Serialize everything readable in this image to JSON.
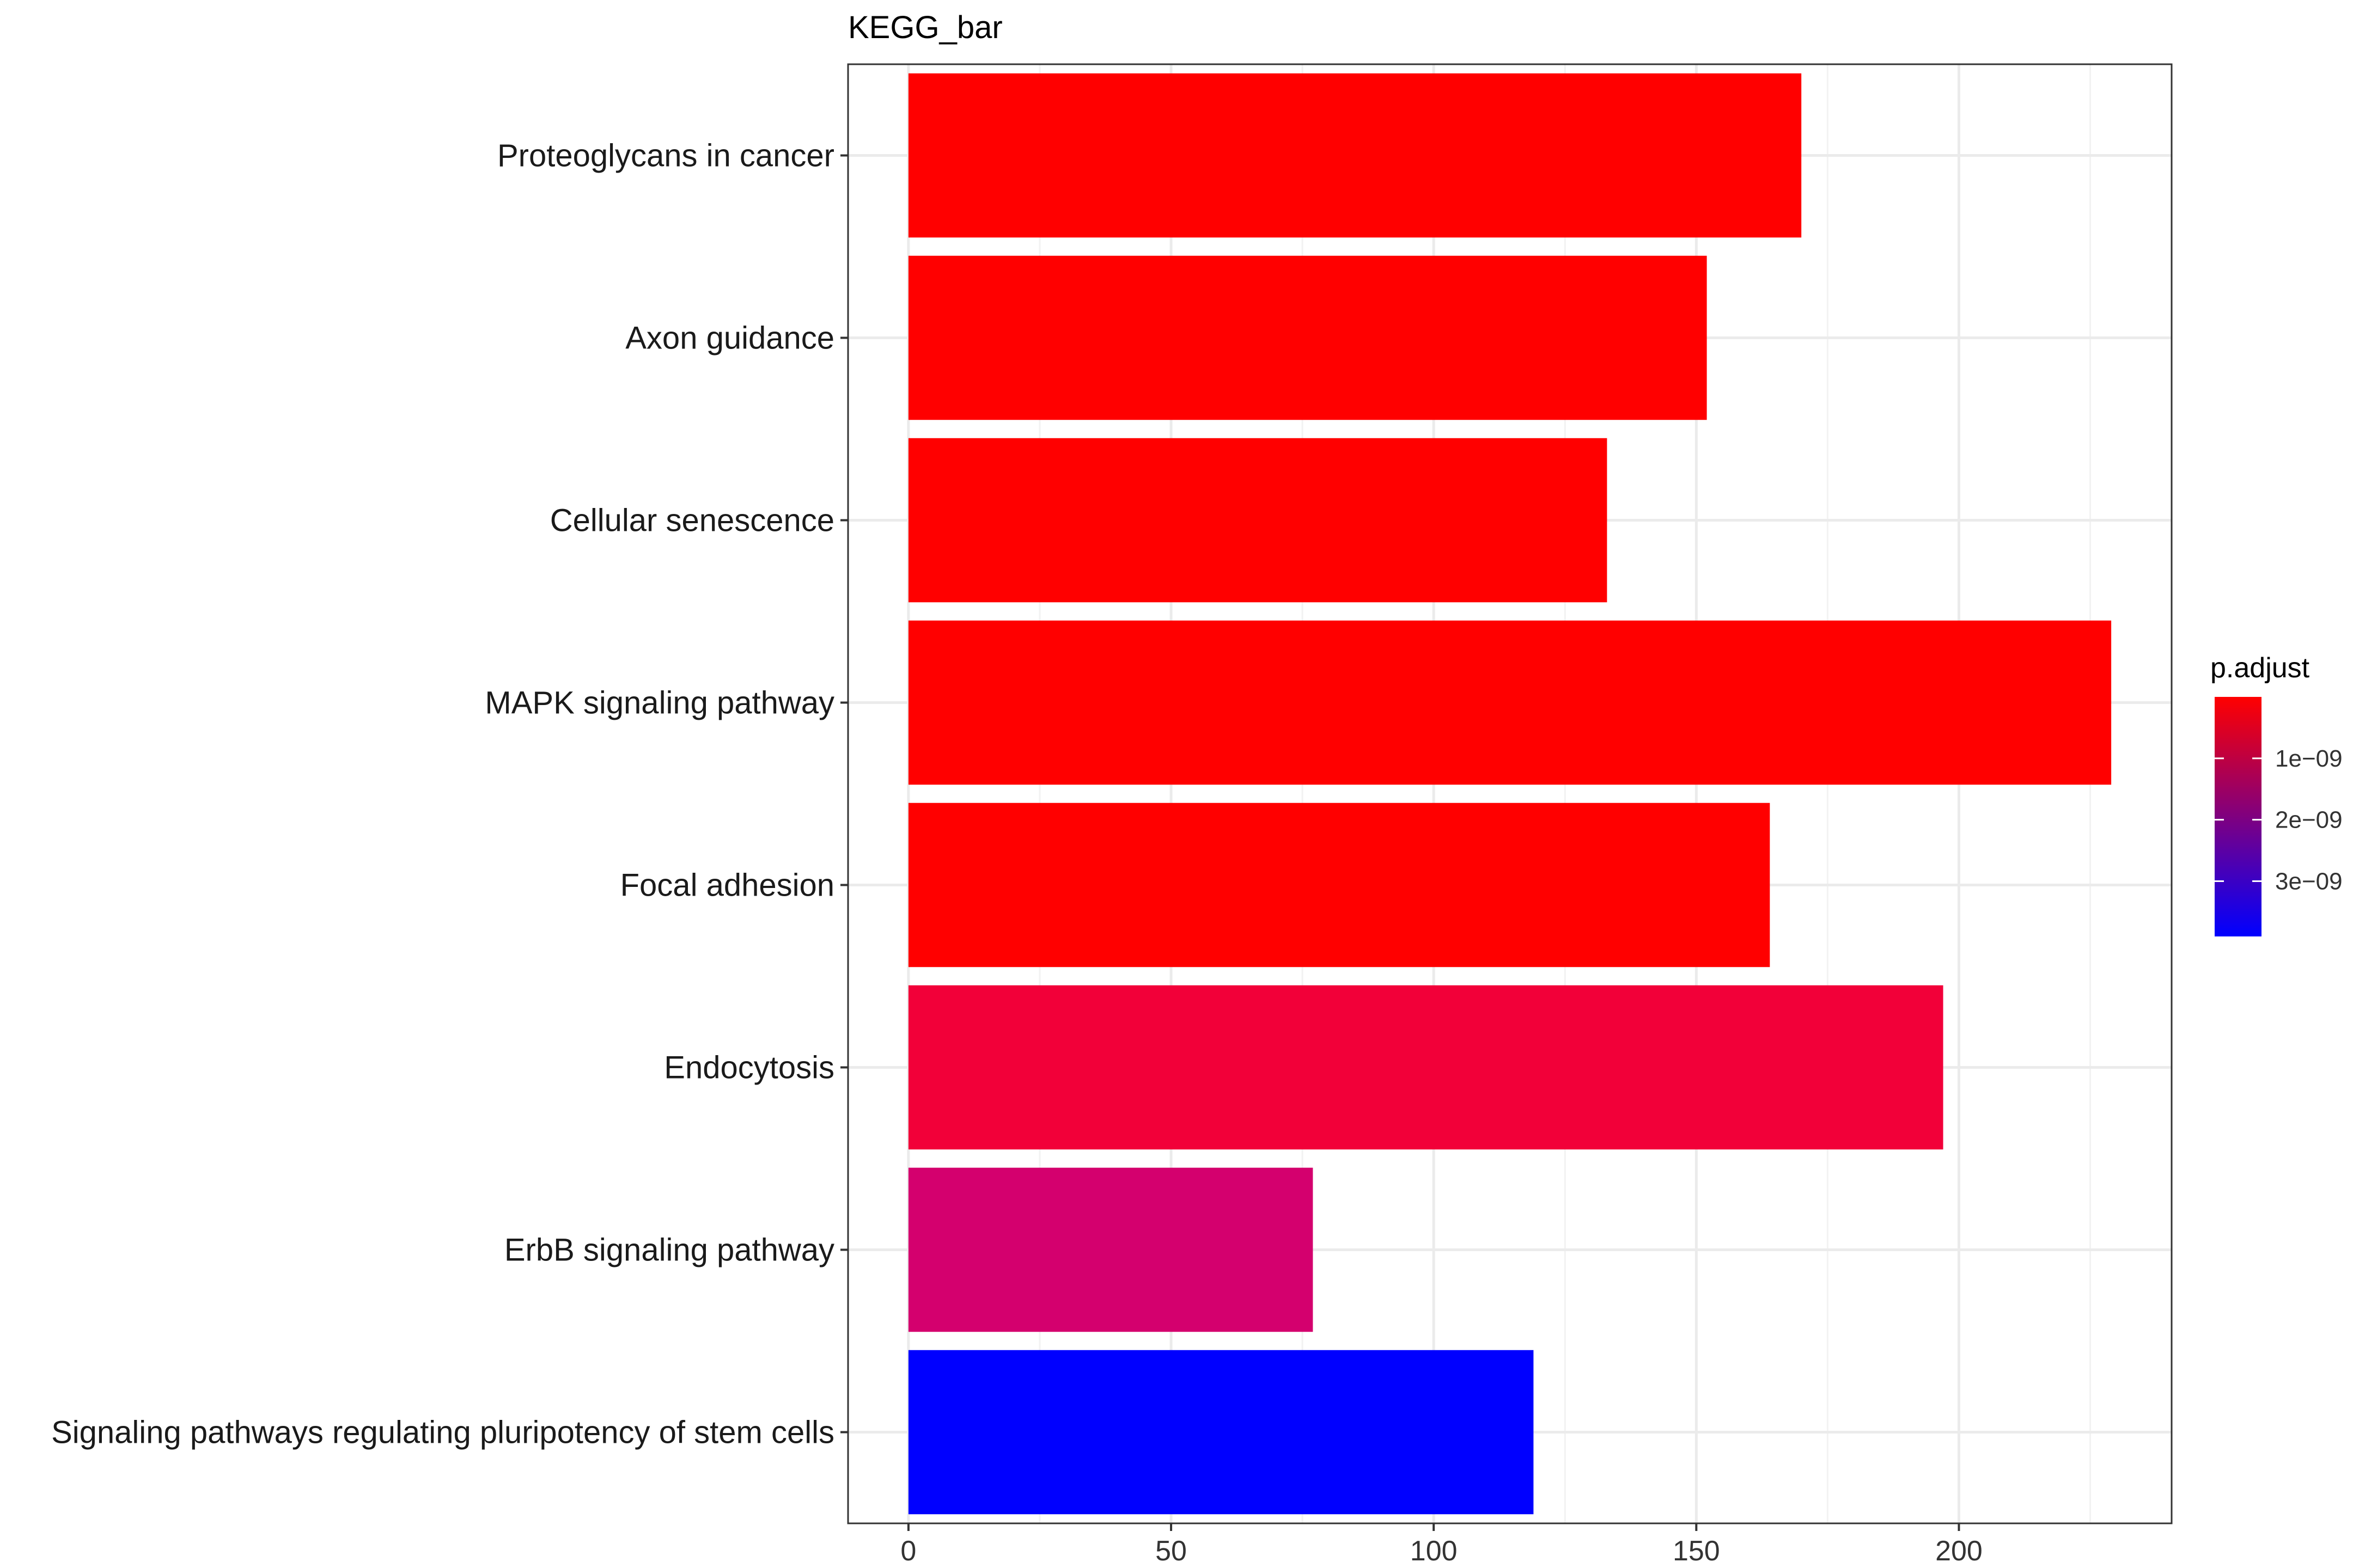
{
  "chart_data": {
    "type": "bar",
    "orientation": "horizontal",
    "title": "KEGG_bar",
    "xlabel": "",
    "ylabel": "",
    "xlim": [
      -11.5,
      240.5
    ],
    "x_ticks": [
      0,
      50,
      100,
      150,
      200
    ],
    "grid": true,
    "categories": [
      "Proteoglycans in cancer",
      "Axon guidance",
      "Cellular senescence",
      "MAPK signaling pathway",
      "Focal adhesion",
      "Endocytosis",
      "ErbB signaling pathway",
      "Signaling pathways regulating pluripotency of stem cells"
    ],
    "values": [
      170,
      152,
      133,
      229,
      164,
      197,
      77,
      119
    ],
    "p_adjust": [
      0.0,
      0.0,
      0.0,
      0.0,
      0.0,
      6e-10,
      1.6e-09,
      3.9e-09
    ],
    "colors": [
      "#ff0000",
      "#ff0000",
      "#ff0000",
      "#ff0000",
      "#ff0000",
      "#f20039",
      "#d4006e",
      "#0000ff"
    ],
    "legend": {
      "title": "p.adjust",
      "position": "right",
      "labels": [
        "1e−09",
        "2e−09",
        "3e−09"
      ],
      "label_values": [
        1e-09,
        2e-09,
        3e-09
      ],
      "range": [
        0.0,
        3.9e-09
      ],
      "color_low": "#ff0000",
      "color_high": "#0000ff"
    }
  }
}
